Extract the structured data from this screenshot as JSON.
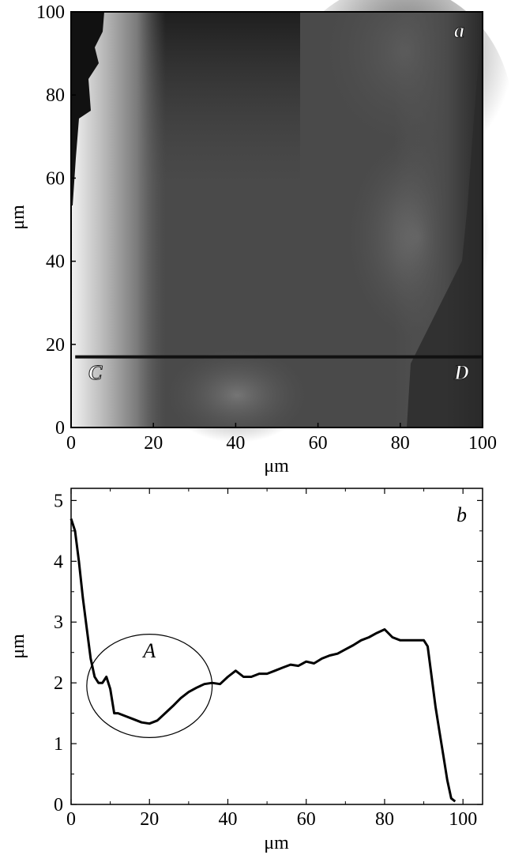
{
  "chart_data": [
    {
      "type": "heatmap",
      "panel_label": "a",
      "xlabel": "μm",
      "ylabel": "μm",
      "xlim": [
        0,
        100
      ],
      "ylim": [
        0,
        100
      ],
      "x_ticks": [
        0,
        20,
        40,
        60,
        80,
        100
      ],
      "y_ticks": [
        0,
        20,
        40,
        60,
        80,
        100
      ],
      "scan_line": {
        "y": 17,
        "x_start": 1,
        "x_end": 100,
        "start_label": "C",
        "end_label": "D"
      },
      "description_colors": {
        "dark": "#1a1a1a",
        "mid": "#5a5a5a",
        "light": "#e8e8e8"
      }
    },
    {
      "type": "line",
      "panel_label": "b",
      "xlabel": "μm",
      "ylabel": "μm",
      "xlim": [
        0,
        105
      ],
      "ylim": [
        0,
        5.2
      ],
      "x_ticks": [
        0,
        20,
        40,
        60,
        80,
        100
      ],
      "y_ticks": [
        0,
        1,
        2,
        3,
        4,
        5
      ],
      "annotation": {
        "label": "A",
        "circle_center": [
          20,
          1.95
        ],
        "circle_radius_x": 16,
        "circle_radius_y": 0.85
      },
      "series": [
        {
          "x": [
            0,
            1,
            2,
            3,
            4,
            5,
            6,
            7,
            8,
            9,
            10,
            11,
            12,
            14,
            16,
            18,
            20,
            22,
            24,
            26,
            28,
            30,
            32,
            34,
            36,
            38,
            40,
            42,
            44,
            46,
            48,
            50,
            52,
            54,
            56,
            58,
            60,
            62,
            64,
            66,
            68,
            70,
            72,
            74,
            76,
            78,
            80,
            82,
            84,
            86,
            88,
            89,
            90,
            91,
            92,
            93,
            94,
            95,
            96,
            97,
            98
          ],
          "y": [
            4.7,
            4.5,
            4.0,
            3.4,
            2.9,
            2.4,
            2.1,
            2.0,
            2.0,
            2.1,
            1.9,
            1.5,
            1.5,
            1.45,
            1.4,
            1.35,
            1.33,
            1.38,
            1.5,
            1.62,
            1.75,
            1.85,
            1.92,
            1.98,
            2.0,
            1.98,
            2.1,
            2.2,
            2.1,
            2.1,
            2.15,
            2.15,
            2.2,
            2.25,
            2.3,
            2.28,
            2.35,
            2.32,
            2.4,
            2.45,
            2.48,
            2.55,
            2.62,
            2.7,
            2.75,
            2.82,
            2.88,
            2.75,
            2.7,
            2.7,
            2.7,
            2.7,
            2.7,
            2.6,
            2.1,
            1.6,
            1.2,
            0.8,
            0.4,
            0.1,
            0.05
          ]
        }
      ]
    }
  ]
}
